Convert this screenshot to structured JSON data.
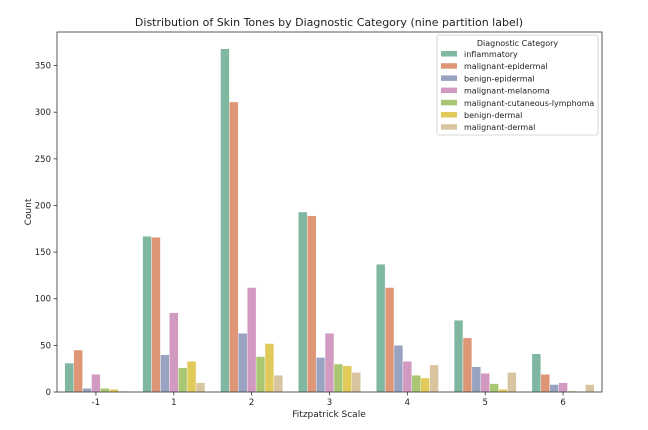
{
  "chart_data": {
    "type": "bar",
    "title": "Distribution of Skin Tones by Diagnostic Category (nine partition label)",
    "xlabel": "Fitzpatrick Scale",
    "ylabel": "Count",
    "categories": [
      "-1",
      "1",
      "2",
      "3",
      "4",
      "5",
      "6"
    ],
    "ylim": [
      0,
      386
    ],
    "yticks": [
      0,
      50,
      100,
      150,
      200,
      250,
      300,
      350
    ],
    "grid": false,
    "legend": {
      "title": "Diagnostic Category",
      "placement": "top-right"
    },
    "series": [
      {
        "name": "inflammatory",
        "color": "#7fb7a1",
        "values": [
          31,
          167,
          368,
          193,
          137,
          77,
          41
        ]
      },
      {
        "name": "malignant-epidermal",
        "color": "#de9677",
        "values": [
          45,
          166,
          311,
          189,
          112,
          58,
          19
        ]
      },
      {
        "name": "benign-epidermal",
        "color": "#97a3c1",
        "values": [
          4,
          40,
          63,
          37,
          50,
          27,
          8
        ]
      },
      {
        "name": "malignant-melanoma",
        "color": "#d29ac1",
        "values": [
          19,
          85,
          112,
          63,
          33,
          20,
          10
        ]
      },
      {
        "name": "malignant-cutaneous-lymphoma",
        "color": "#a9c772",
        "values": [
          4,
          26,
          38,
          30,
          18,
          9,
          1
        ]
      },
      {
        "name": "benign-dermal",
        "color": "#e1c95a",
        "values": [
          3,
          33,
          52,
          28,
          15,
          3,
          0
        ]
      },
      {
        "name": "malignant-dermal",
        "color": "#d9c4a0",
        "values": [
          1,
          10,
          18,
          21,
          29,
          21,
          8
        ]
      }
    ]
  }
}
